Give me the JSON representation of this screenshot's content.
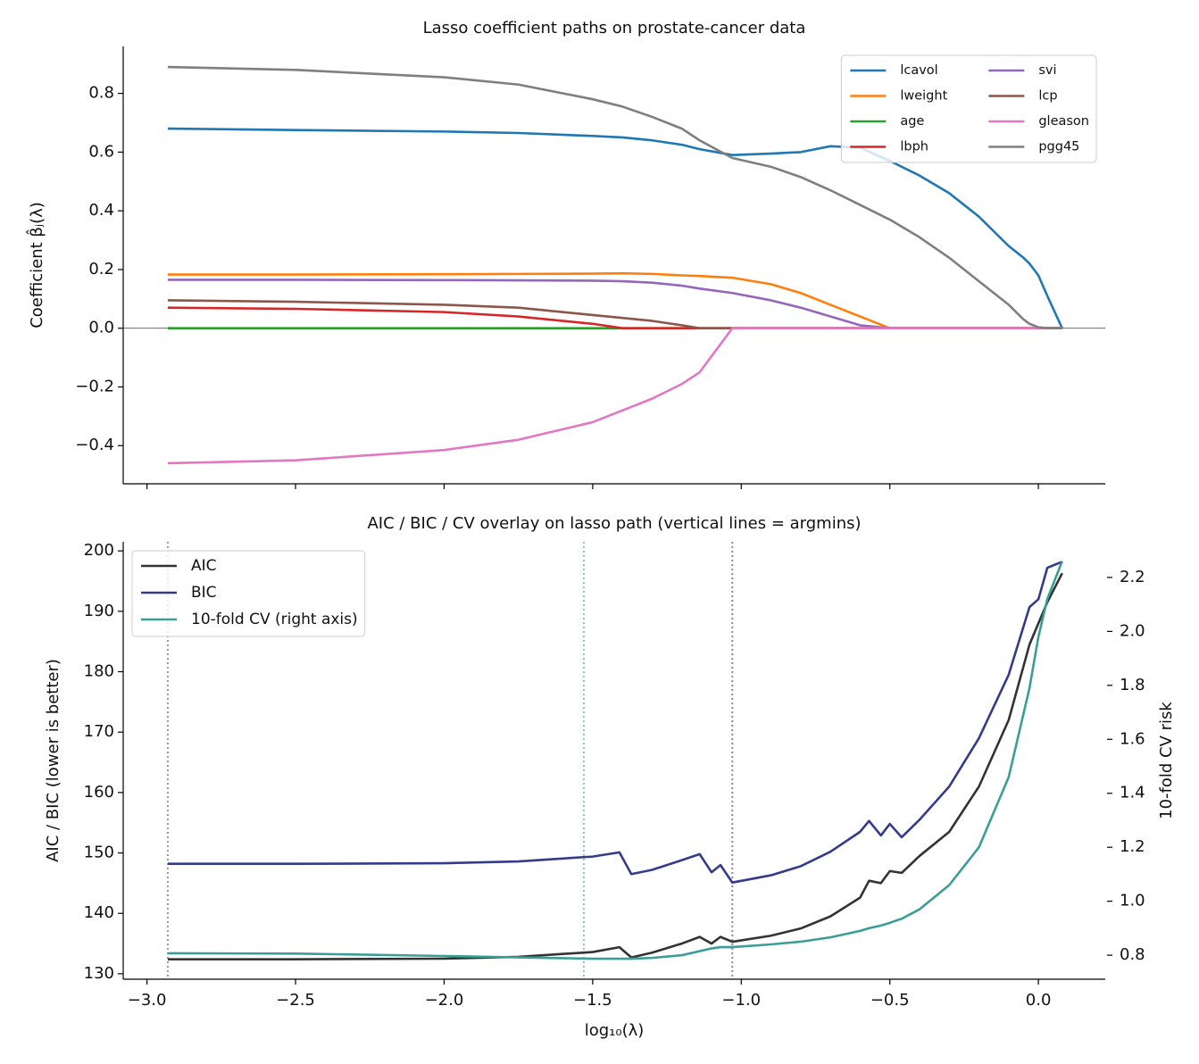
{
  "chart_data": [
    {
      "type": "line",
      "title": "Lasso coefficient paths on prostate-cancer data",
      "ylabel": "Coefficient β̂ⱼ(λ)",
      "x": [
        -2.93,
        -2.5,
        -2.0,
        -1.75,
        -1.5,
        -1.4,
        -1.3,
        -1.2,
        -1.14,
        -1.03,
        -0.9,
        -0.8,
        -0.7,
        -0.6,
        -0.5,
        -0.4,
        -0.3,
        -0.2,
        -0.1,
        -0.05,
        -0.03,
        0.0,
        0.03,
        0.08
      ],
      "series": [
        {
          "name": "lcavol",
          "color": "#1f77b4",
          "values": [
            0.68,
            0.675,
            0.67,
            0.665,
            0.655,
            0.65,
            0.64,
            0.625,
            0.61,
            0.59,
            0.595,
            0.6,
            0.62,
            0.615,
            0.57,
            0.52,
            0.46,
            0.38,
            0.28,
            0.24,
            0.22,
            0.18,
            0.11,
            0.0
          ]
        },
        {
          "name": "lweight",
          "color": "#ff7f0e",
          "values": [
            0.183,
            0.183,
            0.184,
            0.185,
            0.186,
            0.187,
            0.185,
            0.18,
            0.178,
            0.172,
            0.15,
            0.12,
            0.08,
            0.04,
            0.0,
            0,
            0,
            0,
            0,
            0,
            0,
            0,
            0,
            0
          ]
        },
        {
          "name": "age",
          "color": "#2ca02c",
          "values": [
            0,
            0,
            0,
            0,
            0,
            0,
            0,
            0,
            0,
            0,
            0,
            0,
            0,
            0,
            0,
            0,
            0,
            0,
            0,
            0,
            0,
            0,
            0,
            0
          ]
        },
        {
          "name": "lbph",
          "color": "#d62728",
          "values": [
            0.07,
            0.066,
            0.055,
            0.04,
            0.015,
            0.0,
            0,
            0,
            0,
            0,
            0,
            0,
            0,
            0,
            0,
            0,
            0,
            0,
            0,
            0,
            0,
            0,
            0,
            0
          ]
        },
        {
          "name": "svi",
          "color": "#9467bd",
          "values": [
            0.165,
            0.165,
            0.164,
            0.163,
            0.162,
            0.16,
            0.155,
            0.145,
            0.135,
            0.12,
            0.095,
            0.07,
            0.04,
            0.01,
            0,
            0,
            0,
            0,
            0,
            0,
            0,
            0,
            0,
            0
          ]
        },
        {
          "name": "lcp",
          "color": "#8c564b",
          "values": [
            0.095,
            0.09,
            0.08,
            0.07,
            0.045,
            0.035,
            0.025,
            0.01,
            0.0,
            0,
            0,
            0,
            0,
            0,
            0,
            0,
            0,
            0,
            0,
            0,
            0,
            0,
            0,
            0
          ]
        },
        {
          "name": "gleason",
          "color": "#e377c2",
          "values": [
            -0.46,
            -0.45,
            -0.415,
            -0.38,
            -0.32,
            -0.28,
            -0.24,
            -0.19,
            -0.15,
            0.0,
            0,
            0,
            0,
            0,
            0,
            0,
            0,
            0,
            0,
            0,
            0,
            0,
            0,
            0
          ]
        },
        {
          "name": "pgg45",
          "color": "#7f7f7f",
          "values": [
            0.89,
            0.88,
            0.855,
            0.83,
            0.78,
            0.755,
            0.72,
            0.68,
            0.64,
            0.58,
            0.55,
            0.515,
            0.47,
            0.42,
            0.37,
            0.31,
            0.24,
            0.16,
            0.08,
            0.03,
            0.015,
            0.003,
            0.0,
            0.0
          ]
        }
      ],
      "xlim": [
        -3.08,
        0.225
      ],
      "xticks": [
        -3.0,
        -2.5,
        -2.0,
        -1.5,
        -1.0,
        -0.5,
        0.0
      ],
      "xtick_labels": false,
      "ylim": [
        -0.53,
        0.96
      ],
      "yticks": [
        {
          "value": -0.4,
          "label": "−0.4"
        },
        {
          "value": -0.2,
          "label": "−0.2"
        },
        {
          "value": 0,
          "label": "0.0"
        },
        0.2,
        0.4,
        0.6,
        0.8
      ],
      "hline": 0,
      "legend": "upper right",
      "legend_ncol": 2
    },
    {
      "type": "line",
      "title": "AIC / BIC / CV overlay on lasso path (vertical lines = argmins)",
      "xlabel": "log₁₀(λ)",
      "ylabel": "AIC / BIC (lower is better)",
      "y2label": "10-fold CV risk",
      "x": [
        -2.93,
        -2.5,
        -2.0,
        -1.75,
        -1.5,
        -1.41,
        -1.37,
        -1.3,
        -1.2,
        -1.14,
        -1.1,
        -1.07,
        -1.03,
        -0.9,
        -0.8,
        -0.7,
        -0.6,
        -0.57,
        -0.53,
        -0.5,
        -0.46,
        -0.4,
        -0.3,
        -0.2,
        -0.1,
        -0.03,
        0.0,
        0.03,
        0.08
      ],
      "series": [
        {
          "name": "AIC",
          "color": "#333333",
          "values": [
            132.4,
            132.4,
            132.5,
            132.8,
            133.6,
            134.4,
            132.7,
            133.5,
            135.0,
            136.1,
            135.0,
            136.1,
            135.3,
            136.3,
            137.5,
            139.5,
            142.6,
            145.4,
            145.0,
            147.0,
            146.7,
            149.5,
            153.5,
            161.0,
            172.0,
            184.5,
            188.0,
            191.5,
            196.3
          ]
        },
        {
          "name": "BIC",
          "color": "#343a8c",
          "values": [
            148.2,
            148.2,
            148.3,
            148.6,
            149.4,
            150.1,
            146.5,
            147.2,
            148.8,
            149.8,
            146.8,
            148.0,
            145.1,
            146.3,
            147.8,
            150.2,
            153.5,
            155.3,
            152.9,
            154.8,
            152.6,
            155.5,
            161.0,
            169.0,
            179.5,
            190.7,
            192.0,
            197.2,
            198.2
          ]
        },
        {
          "name": "10-fold CV (right axis)",
          "color": "#3a9e96",
          "axis": "y2",
          "values": [
            0.807,
            0.806,
            0.797,
            0.792,
            0.787,
            0.787,
            0.787,
            0.79,
            0.8,
            0.815,
            0.825,
            0.83,
            0.83,
            0.84,
            0.85,
            0.866,
            0.89,
            0.9,
            0.91,
            0.92,
            0.935,
            0.97,
            1.06,
            1.2,
            1.46,
            1.79,
            1.98,
            2.12,
            2.26
          ]
        }
      ],
      "vlines": [
        {
          "x": -2.93,
          "color": "#555555"
        },
        {
          "x": -1.53,
          "color": "#3a9e96"
        },
        {
          "x": -1.03,
          "color": "#343a8c"
        }
      ],
      "xlim": [
        -3.08,
        0.225
      ],
      "xticks": [
        {
          "value": -3.0,
          "label": "−3.0"
        },
        {
          "value": -2.5,
          "label": "−2.5"
        },
        {
          "value": -2.0,
          "label": "−2.0"
        },
        {
          "value": -1.5,
          "label": "−1.5"
        },
        {
          "value": -1.0,
          "label": "−1.0"
        },
        {
          "value": -0.5,
          "label": "−0.5"
        },
        {
          "value": 0,
          "label": "0.0"
        }
      ],
      "xtick_labels": true,
      "ylim": [
        129.1,
        201.5
      ],
      "yticks": [
        130,
        140,
        150,
        160,
        170,
        180,
        190,
        200
      ],
      "y2lim": [
        0.711,
        2.332
      ],
      "y2ticks": [
        0.8,
        {
          "value": 1,
          "label": "1.0"
        },
        1.2,
        1.4,
        1.6,
        1.8,
        {
          "value": 2,
          "label": "2.0"
        },
        2.2
      ],
      "legend": "upper left",
      "legend_ncol": 1
    }
  ]
}
